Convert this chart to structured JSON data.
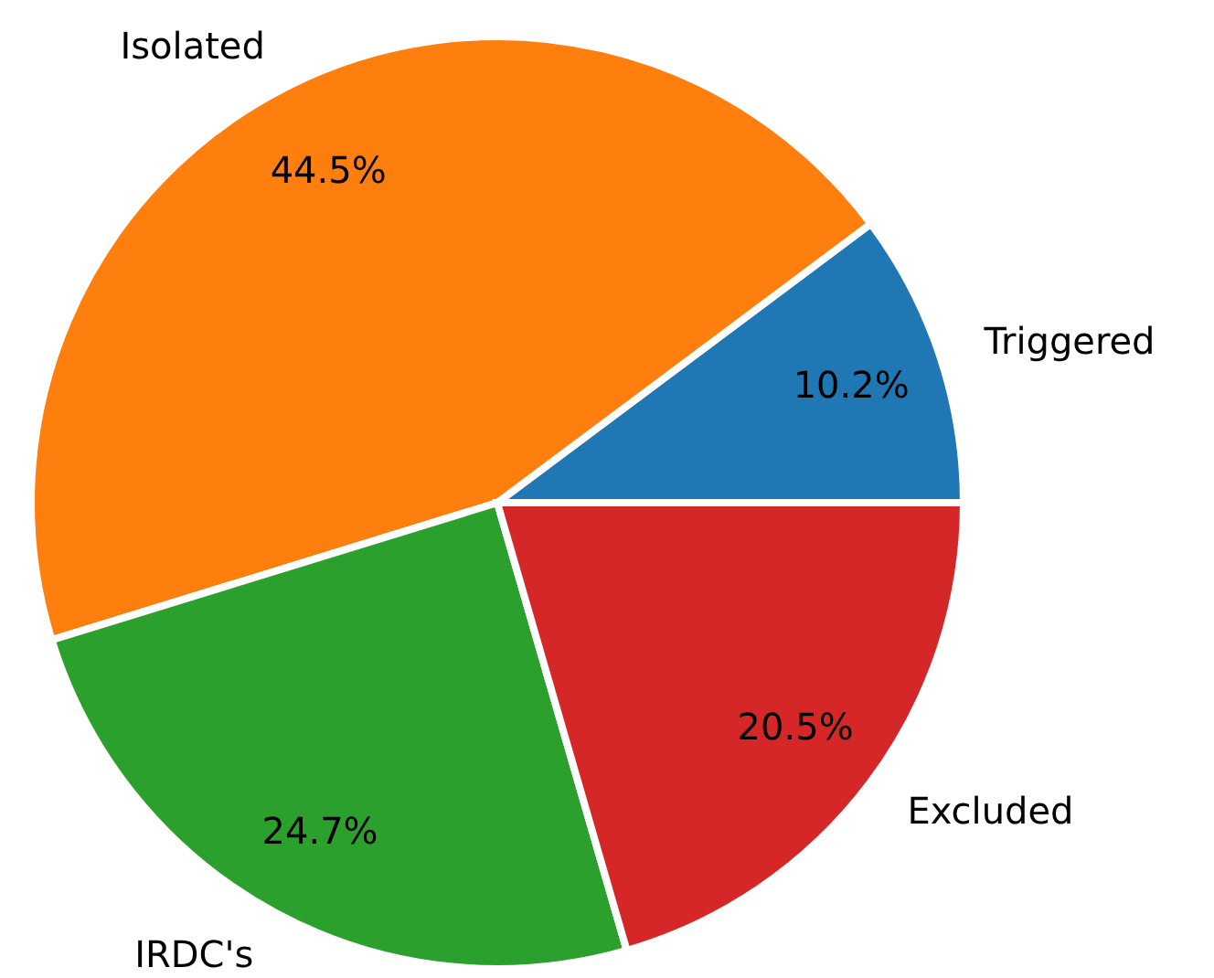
{
  "chart_data": {
    "type": "pie",
    "categories": [
      "Triggered",
      "Isolated",
      "IRDC's",
      "Excluded"
    ],
    "values": [
      10.2,
      44.5,
      24.7,
      20.5
    ],
    "colors": [
      "#1f77b4",
      "#ff7f0e",
      "#2ca02c",
      "#d62728"
    ],
    "value_labels": [
      "10.2%",
      "44.5%",
      "24.7%",
      "20.5%"
    ],
    "legend": false
  }
}
